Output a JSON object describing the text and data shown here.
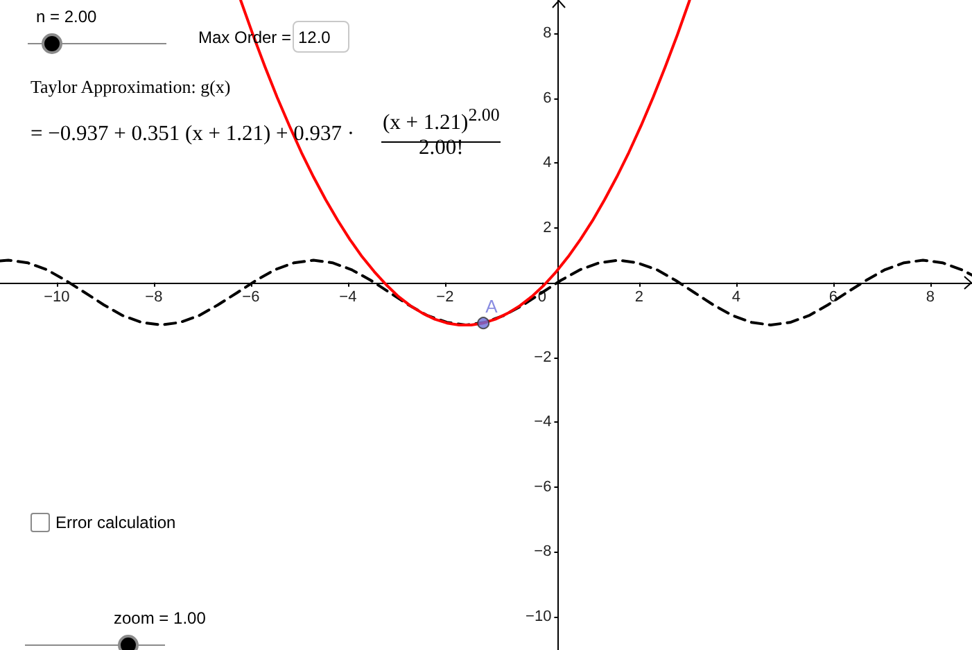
{
  "chart_data": {
    "type": "line",
    "annotations": [
      "n = 2.00",
      "Max Order =",
      "12.0",
      "Taylor Approximation: g(x)",
      "= −0.937 + 0.351 (x + 1.21) + 0.937 ·",
      "(x + 1.21)$^{2.00}$",
      "2.00!",
      "Error calculation",
      "zoom = 1.00"
    ],
    "xlim": [
      -11.17,
      8.86
    ],
    "ylim": [
      -11.03,
      9.03
    ],
    "xticks": [
      {
        "value": -10,
        "label": "−10"
      },
      {
        "value": -8,
        "label": "−8"
      },
      {
        "value": -6,
        "label": "−6"
      },
      {
        "value": -4,
        "label": "−4"
      },
      {
        "value": -2,
        "label": "−2"
      },
      0,
      2,
      4,
      6,
      8
    ],
    "yticks": [
      {
        "value": -10,
        "label": "−10"
      },
      {
        "value": -8,
        "label": "−8"
      },
      {
        "value": -6,
        "label": "−6"
      },
      {
        "value": -4,
        "label": "−4"
      },
      {
        "value": -2,
        "label": "−2"
      },
      2,
      4,
      6,
      8
    ],
    "grid": false,
    "marker": "none",
    "series": [
      {
        "color": "#000000",
        "line_style": "dashed",
        "x": [
          -11.17,
          -11.0,
          -10.6,
          -10.21,
          -9.82,
          -9.42,
          -9.03,
          -8.64,
          -8.25,
          -7.85,
          -7.46,
          -7.07,
          -6.68,
          -6.28,
          -5.89,
          -5.5,
          -5.11,
          -4.71,
          -4.32,
          -3.93,
          -3.53,
          -3.14,
          -2.75,
          -2.36,
          -1.96,
          -1.57,
          -1.18,
          -0.79,
          -0.39,
          0,
          0.39,
          0.79,
          1.18,
          1.57,
          1.96,
          2.36,
          2.75,
          3.14,
          3.53,
          3.93,
          4.32,
          4.71,
          5.11,
          5.5,
          5.89,
          6.28,
          6.68,
          7.07,
          7.46,
          7.85,
          8.25,
          8.64,
          8.86
        ],
        "values": [
          0.98,
          1,
          0.92,
          0.71,
          0.38,
          0,
          -0.38,
          -0.71,
          -0.92,
          -1,
          -0.92,
          -0.71,
          -0.38,
          0,
          0.38,
          0.71,
          0.92,
          1,
          0.92,
          0.71,
          0.38,
          0,
          -0.38,
          -0.71,
          -0.92,
          -1,
          -0.92,
          -0.71,
          -0.38,
          0,
          0.38,
          0.71,
          0.92,
          1,
          0.92,
          0.71,
          0.38,
          0,
          -0.38,
          -0.71,
          -0.92,
          -1,
          -0.92,
          -0.71,
          -0.38,
          0,
          0.38,
          0.71,
          0.92,
          1,
          0.92,
          0.71,
          0.54
        ]
      },
      {
        "color": "#ff0000",
        "line_style": "solid",
        "x": [
          -6.21,
          -5.96,
          -5.71,
          -5.46,
          -5.21,
          -4.96,
          -4.71,
          -4.46,
          -4.21,
          -3.96,
          -3.71,
          -3.46,
          -3.21,
          -2.96,
          -2.71,
          -2.46,
          -2.21,
          -1.96,
          -1.71,
          -1.46,
          -1.21,
          -0.96,
          -0.71,
          -0.46,
          -0.21,
          0.04,
          0.29,
          0.54,
          0.79,
          1.04,
          1.29,
          1.54,
          1.79,
          2.04,
          2.29,
          2.54,
          2.79,
          3.04
        ],
        "values": [
          9.02,
          7.97,
          6.97,
          6.03,
          5.16,
          4.33,
          3.57,
          2.87,
          2.23,
          1.64,
          1.11,
          0.65,
          0.24,
          -0.12,
          -0.41,
          -0.64,
          -0.82,
          -0.94,
          -1.0,
          -1.0,
          -0.94,
          -0.82,
          -0.64,
          -0.41,
          -0.12,
          0.23,
          0.64,
          1.11,
          1.64,
          2.22,
          2.87,
          3.57,
          4.33,
          5.15,
          6.03,
          6.97,
          7.96,
          9.02
        ]
      },
      {
        "type": "scatter",
        "name": "A",
        "color": "#6b6fd9",
        "marker": "circle",
        "x": [
          -1.21
        ],
        "values": [
          -0.94
        ]
      }
    ]
  }
}
